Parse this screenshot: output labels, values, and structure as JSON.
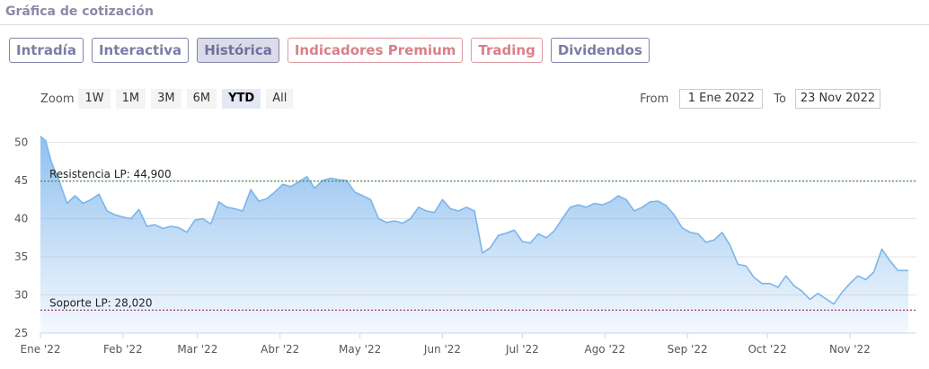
{
  "header": {
    "title": "Gráfica de cotización"
  },
  "tabs": [
    {
      "label": "Intradía",
      "active": false,
      "premium": false
    },
    {
      "label": "Interactiva",
      "active": false,
      "premium": false
    },
    {
      "label": "Histórica",
      "active": true,
      "premium": false
    },
    {
      "label": "Indicadores Premium",
      "active": false,
      "premium": true
    },
    {
      "label": "Trading",
      "active": false,
      "premium": true
    },
    {
      "label": "Dividendos",
      "active": false,
      "premium": false
    }
  ],
  "zoom": {
    "label": "Zoom",
    "buttons": [
      {
        "label": "1W",
        "active": false
      },
      {
        "label": "1M",
        "active": false
      },
      {
        "label": "3M",
        "active": false
      },
      {
        "label": "6M",
        "active": false
      },
      {
        "label": "YTD",
        "active": true
      },
      {
        "label": "All",
        "active": false
      }
    ]
  },
  "range": {
    "from_label": "From",
    "from_value": "1 Ene 2022",
    "to_label": "To",
    "to_value": "23 Nov 2022"
  },
  "colors": {
    "line": "#7cb5ec",
    "resistance": "#2e7d32",
    "support": "#880e4f"
  },
  "chart_data": {
    "type": "area",
    "ylim": [
      25,
      51
    ],
    "yticks": [
      25,
      30,
      35,
      40,
      45,
      50
    ],
    "xticks": [
      "Ene '22",
      "Feb '22",
      "Mar '22",
      "Abr '22",
      "May '22",
      "Jun '22",
      "Jul '22",
      "Ago '22",
      "Sep '22",
      "Oct '22",
      "Nov '22"
    ],
    "grid": true,
    "annotations": [
      {
        "label": "Resistencia LP: 44,900",
        "value": 44.9,
        "style": "dashed",
        "color": "resistance"
      },
      {
        "label": "Soporte LP: 28,020",
        "value": 28.02,
        "style": "dashed",
        "color": "support"
      }
    ],
    "series": [
      {
        "x": [
          "2022-01-01",
          "2022-01-03",
          "2022-01-05",
          "2022-01-08",
          "2022-01-11",
          "2022-01-14",
          "2022-01-17",
          "2022-01-20",
          "2022-01-23",
          "2022-01-26",
          "2022-01-29",
          "2022-02-01",
          "2022-02-04",
          "2022-02-07",
          "2022-02-10",
          "2022-02-13",
          "2022-02-16",
          "2022-02-19",
          "2022-02-22",
          "2022-02-25",
          "2022-02-28",
          "2022-03-03",
          "2022-03-06",
          "2022-03-09",
          "2022-03-12",
          "2022-03-15",
          "2022-03-18",
          "2022-03-21",
          "2022-03-24",
          "2022-03-27",
          "2022-03-30",
          "2022-04-02",
          "2022-04-05",
          "2022-04-08",
          "2022-04-11",
          "2022-04-14",
          "2022-04-17",
          "2022-04-20",
          "2022-04-23",
          "2022-04-26",
          "2022-04-29",
          "2022-05-02",
          "2022-05-05",
          "2022-05-08",
          "2022-05-11",
          "2022-05-14",
          "2022-05-17",
          "2022-05-20",
          "2022-05-23",
          "2022-05-26",
          "2022-05-29",
          "2022-06-01",
          "2022-06-04",
          "2022-06-07",
          "2022-06-10",
          "2022-06-13",
          "2022-06-16",
          "2022-06-19",
          "2022-06-22",
          "2022-06-25",
          "2022-06-28",
          "2022-07-01",
          "2022-07-04",
          "2022-07-07",
          "2022-07-10",
          "2022-07-13",
          "2022-07-16",
          "2022-07-19",
          "2022-07-22",
          "2022-07-25",
          "2022-07-28",
          "2022-07-31",
          "2022-08-03",
          "2022-08-06",
          "2022-08-09",
          "2022-08-12",
          "2022-08-15",
          "2022-08-18",
          "2022-08-21",
          "2022-08-24",
          "2022-08-27",
          "2022-08-30",
          "2022-09-02",
          "2022-09-05",
          "2022-09-08",
          "2022-09-11",
          "2022-09-14",
          "2022-09-17",
          "2022-09-20",
          "2022-09-23",
          "2022-09-26",
          "2022-09-29",
          "2022-10-02",
          "2022-10-05",
          "2022-10-08",
          "2022-10-11",
          "2022-10-14",
          "2022-10-17",
          "2022-10-20",
          "2022-10-23",
          "2022-10-26",
          "2022-10-29",
          "2022-11-01",
          "2022-11-04",
          "2022-11-07",
          "2022-11-10",
          "2022-11-13",
          "2022-11-16",
          "2022-11-19",
          "2022-11-23"
        ],
        "values": [
          50.8,
          50.2,
          47.5,
          45.0,
          42.0,
          43.0,
          42.0,
          42.5,
          43.2,
          41.0,
          40.5,
          40.2,
          40.0,
          41.2,
          39.0,
          39.2,
          38.7,
          39.0,
          38.8,
          38.2,
          39.8,
          40.0,
          39.3,
          42.2,
          41.5,
          41.3,
          41.0,
          43.8,
          42.3,
          42.6,
          43.5,
          44.5,
          44.2,
          44.8,
          45.5,
          44.0,
          45.0,
          45.3,
          45.1,
          45.0,
          43.5,
          43.0,
          42.5,
          40.0,
          39.5,
          39.7,
          39.4,
          40.0,
          41.5,
          41.0,
          40.8,
          42.5,
          41.3,
          41.0,
          41.5,
          41.0,
          35.5,
          36.2,
          37.8,
          38.1,
          38.5,
          37.0,
          36.8,
          38.0,
          37.5,
          38.4,
          40.0,
          41.5,
          41.8,
          41.5,
          42.0,
          41.8,
          42.2,
          43.0,
          42.5,
          41.0,
          41.5,
          42.2,
          42.3,
          41.7,
          40.5,
          38.8,
          38.2,
          38.0,
          36.9,
          37.2,
          38.2,
          36.5,
          34.0,
          33.8,
          32.3,
          31.5,
          31.5,
          31.0,
          32.5,
          31.2,
          30.5,
          29.4,
          30.2,
          29.5,
          28.8,
          30.3,
          31.5,
          32.5,
          32.0,
          33.0,
          36.0,
          34.5,
          33.2,
          33.2
        ]
      }
    ]
  }
}
